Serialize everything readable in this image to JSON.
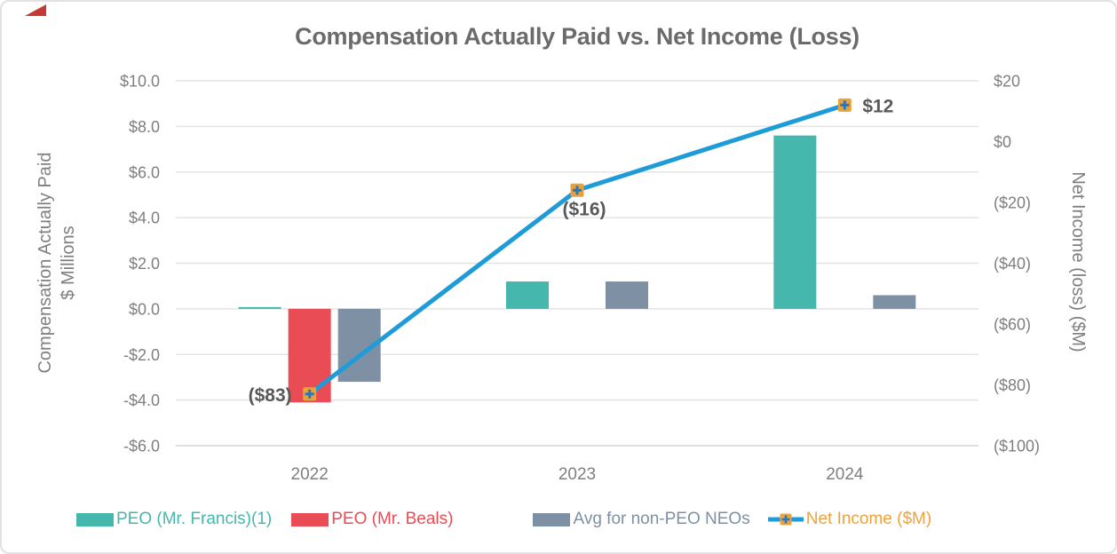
{
  "title": "Compensation Actually Paid vs. Net Income (Loss)",
  "corner_flag": {
    "color": "#c43a34"
  },
  "chart_data": {
    "type": "combo-bar-line",
    "categories": [
      "2022",
      "2023",
      "2024"
    ],
    "bar_series": [
      {
        "name": "PEO (Mr. Francis)(1)",
        "color": "#45B7AD",
        "values": [
          0.05,
          1.2,
          7.6
        ]
      },
      {
        "name": "PEO (Mr. Beals)",
        "color": "#EA4C56",
        "values": [
          -4.1,
          null,
          null
        ]
      },
      {
        "name": "Avg for non-PEO NEOs",
        "color": "#7E91A4",
        "values": [
          -3.2,
          1.2,
          0.6
        ]
      }
    ],
    "line_series": {
      "name": "Net Income ($M)",
      "color": "#1F9CD8",
      "marker_color": "#E9A23B",
      "marker_plus_color": "#2778BE",
      "axis": "right",
      "values": [
        -83,
        -16,
        12
      ],
      "point_labels": [
        "($83)",
        "($16)",
        "$12"
      ]
    },
    "left_axis": {
      "title_lines": [
        "Compensation Actually Paid",
        "$ Millions"
      ],
      "ticks": [
        "$10.0",
        "$8.0",
        "$6.0",
        "$4.0",
        "$2.0",
        "$0.0",
        "-$2.0",
        "-$4.0",
        "-$6.0"
      ],
      "max": 10,
      "min": -6
    },
    "right_axis": {
      "title": "Net Income (loss) ($M)",
      "ticks": [
        "$20",
        "$0",
        "($20)",
        "($40)",
        "($60)",
        "($80)",
        "($100)"
      ],
      "max": 20,
      "min": -100
    },
    "grid": true,
    "legend_position": "bottom"
  },
  "legend": [
    {
      "label": "PEO (Mr. Francis)(1)",
      "color": "#45B7AD",
      "swatch": "rect"
    },
    {
      "label": "PEO (Mr. Beals)",
      "color": "#EA4C56",
      "swatch": "rect"
    },
    {
      "label": "Avg for non-PEO NEOs",
      "color": "#7E91A4",
      "swatch": "rect"
    },
    {
      "label": "Net Income ($M)",
      "color": "#EDA33D",
      "line_color": "#1F9CD8",
      "swatch": "line"
    }
  ]
}
